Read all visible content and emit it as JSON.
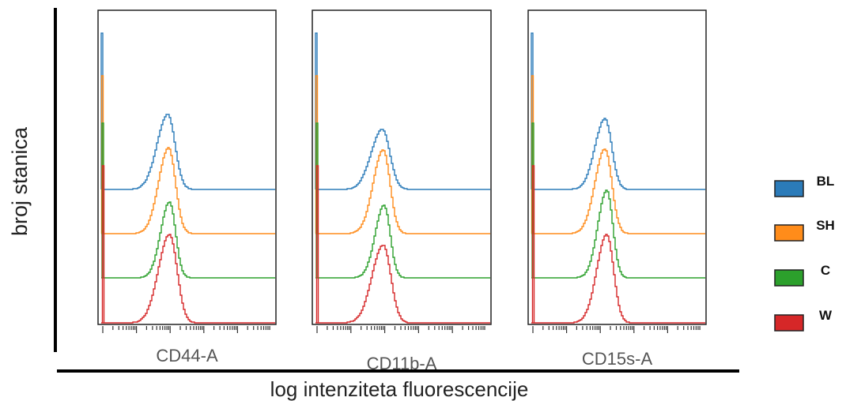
{
  "chart_data": {
    "type": "histogram",
    "ylabel": "broj stanica",
    "xlabel": "log intenziteta fluorescencije",
    "x_scale": "log",
    "layout": "offset overlay histograms, 3 panels, legend right",
    "series_order": [
      "BL",
      "SH",
      "C",
      "W"
    ],
    "legend": [
      {
        "name": "BL",
        "color": "#2b7bb9"
      },
      {
        "name": "SH",
        "color": "#ff8c1a"
      },
      {
        "name": "C",
        "color": "#2ca02c"
      },
      {
        "name": "W",
        "color": "#d62728"
      }
    ],
    "panels": [
      {
        "label": "CD44-A",
        "peaks": [
          {
            "series": "BL",
            "center": 0.37,
            "rel_height": 0.85,
            "width": 0.048
          },
          {
            "series": "SH",
            "center": 0.375,
            "rel_height": 0.97,
            "width": 0.045
          },
          {
            "series": "C",
            "center": 0.38,
            "rel_height": 0.86,
            "width": 0.04
          },
          {
            "series": "W",
            "center": 0.38,
            "rel_height": 1.0,
            "width": 0.05
          }
        ]
      },
      {
        "label": "CD11b-A",
        "peaks": [
          {
            "series": "BL",
            "center": 0.37,
            "rel_height": 0.68,
            "width": 0.05
          },
          {
            "series": "SH",
            "center": 0.375,
            "rel_height": 0.95,
            "width": 0.045
          },
          {
            "series": "C",
            "center": 0.38,
            "rel_height": 0.82,
            "width": 0.04
          },
          {
            "series": "W",
            "center": 0.375,
            "rel_height": 0.88,
            "width": 0.05
          }
        ]
      },
      {
        "label": "CD15s-A",
        "peaks": [
          {
            "series": "BL",
            "center": 0.41,
            "rel_height": 0.8,
            "width": 0.045
          },
          {
            "series": "SH",
            "center": 0.41,
            "rel_height": 0.96,
            "width": 0.045
          },
          {
            "series": "C",
            "center": 0.42,
            "rel_height": 0.99,
            "width": 0.04
          },
          {
            "series": "W",
            "center": 0.42,
            "rel_height": 1.0,
            "width": 0.045
          }
        ]
      }
    ]
  }
}
